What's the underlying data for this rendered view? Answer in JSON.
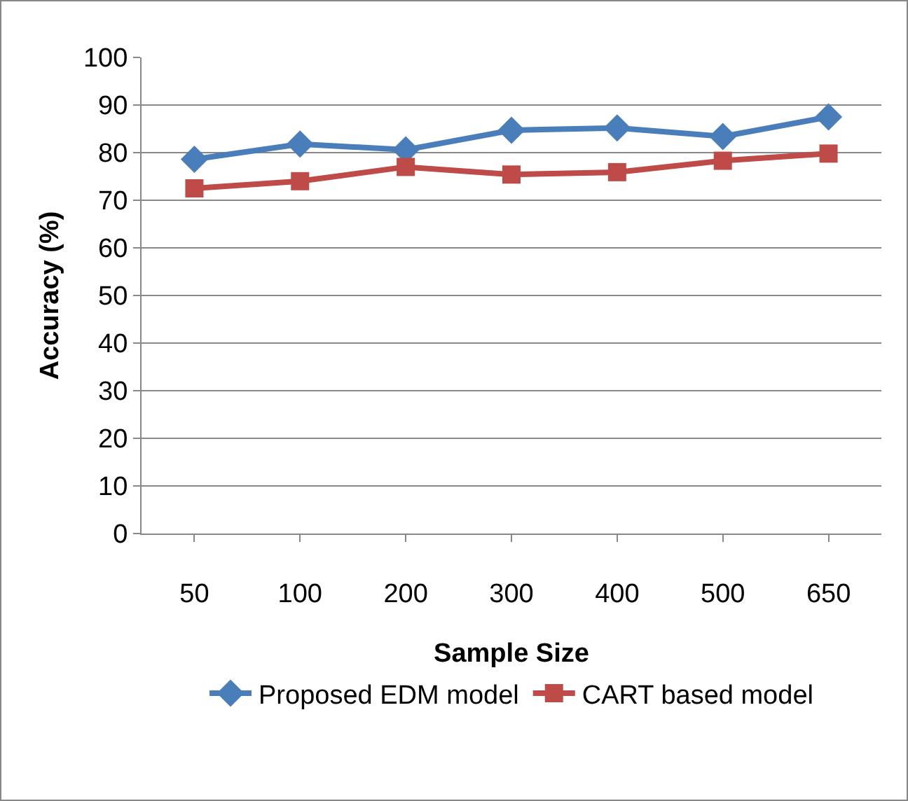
{
  "chart_data": {
    "type": "line",
    "xlabel": "Sample Size",
    "ylabel": "Accuracy (%)",
    "categories": [
      "50",
      "100",
      "200",
      "300",
      "400",
      "500",
      "650"
    ],
    "series": [
      {
        "name": "Proposed EDM model",
        "color": "#4a7ebb",
        "marker": "diamond",
        "values": [
          78.6,
          81.8,
          80.6,
          84.7,
          85.2,
          83.4,
          87.5
        ]
      },
      {
        "name": "CART based model",
        "color": "#be4b48",
        "marker": "square",
        "values": [
          72.5,
          74.0,
          77.0,
          75.4,
          75.9,
          78.3,
          79.8
        ]
      }
    ],
    "ylim": [
      0,
      100
    ],
    "yticks": [
      0,
      10,
      20,
      30,
      40,
      50,
      60,
      70,
      80,
      90,
      100
    ],
    "grid": "y",
    "legend": "bottom"
  }
}
